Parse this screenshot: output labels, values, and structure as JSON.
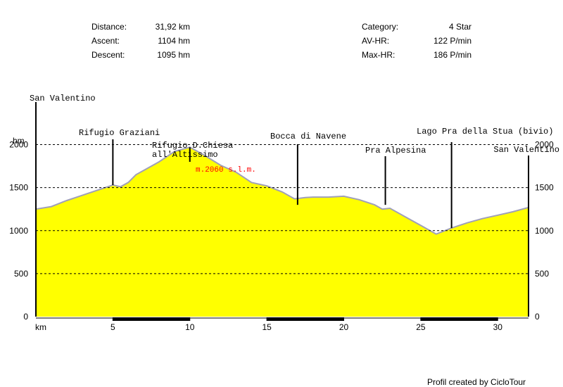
{
  "stats": {
    "left": [
      {
        "label": "Distance:",
        "value": "31,92 km"
      },
      {
        "label": "Ascent:",
        "value": "1104 hm"
      },
      {
        "label": "Descent:",
        "value": "1095 hm"
      }
    ],
    "right": [
      {
        "label": "Category:",
        "value": "4 Star"
      },
      {
        "label": "AV-HR:",
        "value": "122 P/min"
      },
      {
        "label": "Max-HR:",
        "value": "186 P/min"
      }
    ]
  },
  "credit": "Profil created by CicloTour",
  "colors": {
    "fill": "#ffff00",
    "outline": "#a0a0b8",
    "grid": "#000000",
    "highlight": "#ff0000"
  },
  "chart_data": {
    "type": "area",
    "xlabel": "km",
    "ylabel": "hm",
    "xlim": [
      0,
      32
    ],
    "ylim": [
      0,
      2250
    ],
    "x_ticks": [
      5,
      10,
      15,
      20,
      25,
      30
    ],
    "y_ticks": [
      0,
      500,
      1000,
      1500,
      2000
    ],
    "grid": "dashed horizontal",
    "series": [
      {
        "x": [
          0,
          1,
          2,
          3,
          4,
          5,
          5.5,
          6,
          6.5,
          7,
          8,
          9,
          10,
          10.5,
          11,
          12,
          13,
          14,
          15,
          16,
          16.8,
          17.5,
          18,
          19,
          20,
          21,
          22,
          22.5,
          23,
          24,
          25,
          26,
          27,
          28,
          29,
          30,
          31,
          32
        ],
        "y": [
          1250,
          1280,
          1350,
          1410,
          1470,
          1530,
          1510,
          1560,
          1650,
          1700,
          1800,
          1920,
          1970,
          1920,
          1870,
          1760,
          1680,
          1560,
          1520,
          1450,
          1370,
          1385,
          1390,
          1390,
          1400,
          1360,
          1300,
          1250,
          1260,
          1160,
          1060,
          960,
          1030,
          1090,
          1140,
          1180,
          1220,
          1270
        ]
      }
    ],
    "annotations": [
      {
        "text": "San Valentino",
        "x": 0
      },
      {
        "text": "Rifugio Graziani",
        "x": 5
      },
      {
        "text": "Rifugio D.Chiesa\nall'Altissimo",
        "x": 10
      },
      {
        "text": "Bocca di Navene",
        "x": 17
      },
      {
        "text": "Pra Alpesina",
        "x": 22.7
      },
      {
        "text": "Lago Pra della Stua (bivio)",
        "x": 27
      },
      {
        "text": "San Valentino",
        "x": 32
      }
    ],
    "peak_label": {
      "text": "m.2060 s.l.m.",
      "x": 10
    }
  }
}
